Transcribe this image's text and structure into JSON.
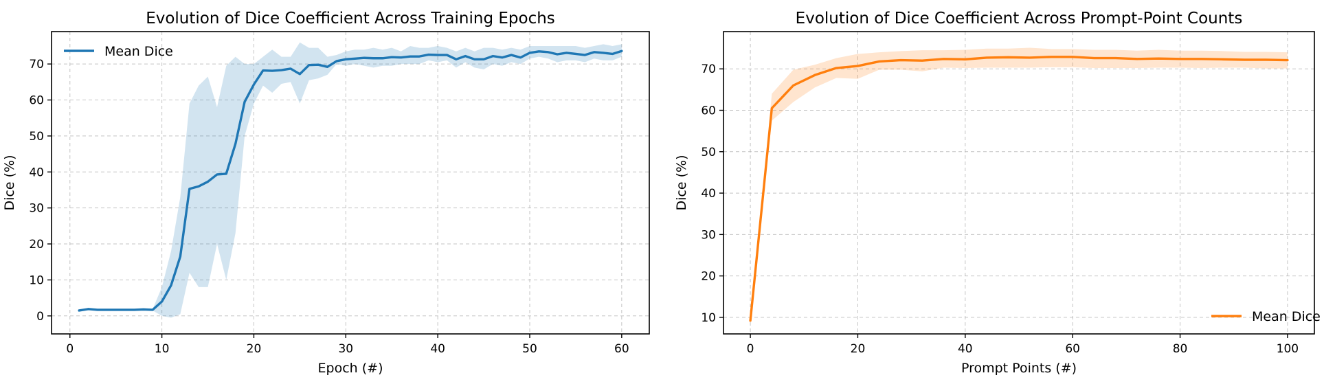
{
  "chart_data": [
    {
      "type": "line",
      "title": "Evolution of Dice Coefficient Across Training Epochs",
      "xlabel": "Epoch (#)",
      "ylabel": "Dice (%)",
      "xlim": [
        -2,
        63
      ],
      "ylim": [
        -5,
        79
      ],
      "xticks": [
        0,
        10,
        20,
        30,
        40,
        50,
        60
      ],
      "yticks": [
        0,
        10,
        20,
        30,
        40,
        50,
        60,
        70
      ],
      "grid": true,
      "legend_position": "top-left",
      "series": [
        {
          "name": "Mean Dice",
          "color": "#1f77b4",
          "band_color": "#1f77b4",
          "x": [
            1,
            2,
            3,
            4,
            5,
            6,
            7,
            8,
            9,
            10,
            11,
            12,
            13,
            14,
            15,
            16,
            17,
            18,
            19,
            20,
            21,
            22,
            23,
            24,
            25,
            26,
            27,
            28,
            29,
            30,
            31,
            32,
            33,
            34,
            35,
            36,
            37,
            38,
            39,
            40,
            41,
            42,
            43,
            44,
            45,
            46,
            47,
            48,
            49,
            50,
            51,
            52,
            53,
            54,
            55,
            56,
            57,
            58,
            59,
            60
          ],
          "values": [
            1.5,
            1.9,
            1.7,
            1.7,
            1.7,
            1.7,
            1.7,
            1.8,
            1.7,
            4.0,
            8.5,
            16.5,
            35.3,
            36.0,
            37.3,
            39.3,
            39.5,
            47.8,
            59.5,
            64.3,
            68.2,
            68.1,
            68.3,
            68.7,
            67.2,
            69.7,
            69.8,
            69.2,
            70.8,
            71.3,
            71.5,
            71.7,
            71.6,
            71.6,
            71.9,
            71.8,
            72.1,
            72.1,
            72.6,
            72.5,
            72.5,
            71.3,
            72.2,
            71.3,
            71.3,
            72.2,
            71.8,
            72.5,
            71.8,
            73.1,
            73.5,
            73.3,
            72.7,
            73.1,
            72.8,
            72.5,
            73.3,
            73.1,
            72.8,
            73.6
          ],
          "lower": [
            1.3,
            1.7,
            1.5,
            1.5,
            1.5,
            1.5,
            1.5,
            1.6,
            1.5,
            0.0,
            -0.5,
            0.5,
            12.0,
            8.0,
            8.0,
            20.0,
            10.0,
            23.0,
            50.0,
            59.0,
            64.0,
            62.0,
            64.5,
            65.0,
            59.0,
            65.5,
            66.0,
            67.0,
            70.0,
            69.5,
            70.0,
            69.5,
            69.0,
            69.5,
            69.5,
            70.0,
            70.0,
            70.0,
            71.0,
            70.5,
            71.0,
            69.0,
            70.5,
            69.0,
            68.5,
            70.0,
            69.5,
            70.5,
            70.0,
            71.5,
            72.0,
            71.5,
            70.5,
            71.0,
            71.0,
            70.5,
            71.5,
            71.0,
            71.0,
            72.0
          ],
          "upper": [
            1.7,
            2.1,
            1.9,
            1.9,
            1.9,
            1.9,
            1.9,
            2.0,
            1.9,
            8.0,
            18.0,
            33.0,
            59.0,
            64.0,
            66.5,
            58.0,
            69.5,
            72.0,
            70.0,
            70.0,
            72.0,
            74.0,
            72.0,
            72.0,
            76.0,
            74.5,
            74.5,
            72.0,
            72.5,
            73.5,
            74.0,
            74.0,
            74.5,
            74.0,
            74.5,
            73.5,
            75.0,
            74.5,
            74.5,
            75.0,
            74.5,
            73.5,
            74.5,
            73.5,
            74.5,
            74.5,
            74.0,
            74.5,
            74.0,
            75.0,
            75.0,
            75.0,
            75.0,
            75.0,
            75.0,
            74.5,
            75.0,
            75.5,
            75.0,
            75.5
          ]
        }
      ]
    },
    {
      "type": "line",
      "title": "Evolution of Dice Coefficient Across Prompt-Point Counts",
      "xlabel": "Prompt Points (#)",
      "ylabel": "Dice (%)",
      "xlim": [
        -5,
        105
      ],
      "ylim": [
        6,
        79
      ],
      "xticks": [
        0,
        20,
        40,
        60,
        80,
        100
      ],
      "yticks": [
        10,
        20,
        30,
        40,
        50,
        60,
        70
      ],
      "grid": true,
      "legend_position": "bottom-right",
      "series": [
        {
          "name": "Mean Dice",
          "color": "#ff7f0e",
          "band_color": "#ff7f0e",
          "x": [
            0,
            4,
            8,
            12,
            16,
            20,
            24,
            28,
            32,
            36,
            40,
            44,
            48,
            52,
            56,
            60,
            64,
            68,
            72,
            76,
            80,
            84,
            88,
            92,
            96,
            100
          ],
          "values": [
            9.2,
            60.5,
            66.0,
            68.5,
            70.2,
            70.7,
            71.8,
            72.1,
            72.0,
            72.4,
            72.3,
            72.7,
            72.8,
            72.7,
            72.9,
            72.9,
            72.6,
            72.6,
            72.4,
            72.5,
            72.4,
            72.4,
            72.3,
            72.2,
            72.2,
            72.1
          ],
          "lower": [
            9.2,
            57.5,
            62.0,
            65.5,
            67.8,
            67.6,
            69.8,
            69.8,
            69.4,
            70.3,
            70.2,
            70.3,
            70.3,
            70.3,
            70.4,
            70.4,
            70.2,
            70.2,
            70.2,
            70.3,
            70.3,
            70.2,
            70.3,
            70.3,
            70.1,
            70.1
          ],
          "upper": [
            9.2,
            64.0,
            69.8,
            71.0,
            72.6,
            73.6,
            74.0,
            74.3,
            74.5,
            74.5,
            74.6,
            74.9,
            74.9,
            75.1,
            74.8,
            74.8,
            74.6,
            74.6,
            74.4,
            74.6,
            74.4,
            74.4,
            74.3,
            74.1,
            74.1,
            74.0
          ]
        }
      ]
    }
  ]
}
